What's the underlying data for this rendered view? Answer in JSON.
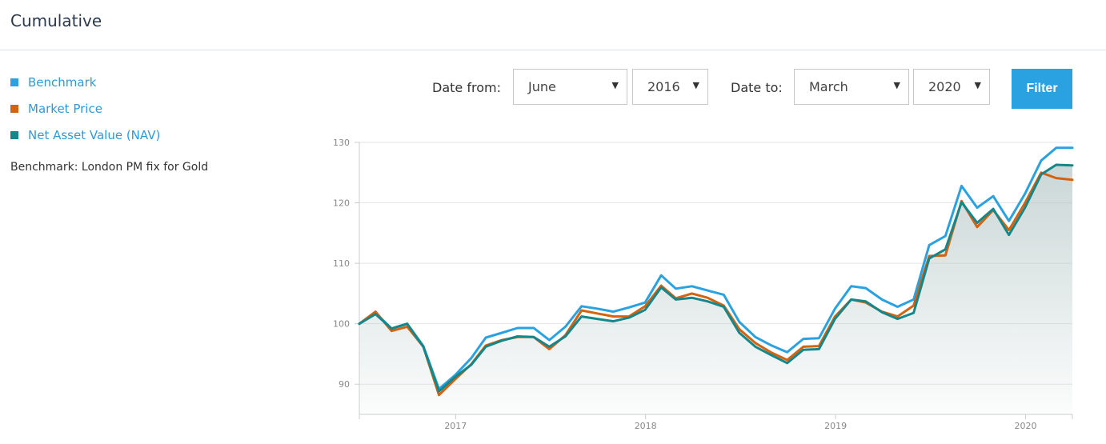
{
  "header": {
    "title": "Cumulative"
  },
  "legend": [
    {
      "label": "Benchmark",
      "color": "#2aa2e2"
    },
    {
      "label": "Market Price",
      "color": "#d4620f"
    },
    {
      "label": "Net Asset Value (NAV)",
      "color": "#14878a"
    }
  ],
  "benchmark_note": "Benchmark: London PM fix for Gold",
  "filters": {
    "date_from_label": "Date from:",
    "date_from_month": "June",
    "date_from_year": "2016",
    "date_to_label": "Date to:",
    "date_to_month": "March",
    "date_to_year": "2020",
    "filter_button": "Filter",
    "caret_icon": "triangle-down"
  },
  "chart_data": {
    "type": "line",
    "title": "",
    "xlabel": "",
    "ylabel": "",
    "ylim": [
      85,
      130
    ],
    "yticks": [
      90,
      100,
      110,
      120,
      130
    ],
    "xlim": [
      "2016-06-30",
      "2020-03-31"
    ],
    "xticks": [
      {
        "date": "2017-01-01",
        "label": "2017"
      },
      {
        "date": "2018-01-01",
        "label": "2018"
      },
      {
        "date": "2019-01-01",
        "label": "2019"
      },
      {
        "date": "2020-01-01",
        "label": "2020"
      }
    ],
    "grid": true,
    "x": [
      "2016-06-30",
      "2016-07-31",
      "2016-08-31",
      "2016-09-30",
      "2016-10-31",
      "2016-11-30",
      "2016-12-31",
      "2017-01-31",
      "2017-02-28",
      "2017-03-31",
      "2017-04-30",
      "2017-05-31",
      "2017-06-30",
      "2017-07-31",
      "2017-08-31",
      "2017-09-30",
      "2017-10-31",
      "2017-11-30",
      "2017-12-31",
      "2018-01-31",
      "2018-02-28",
      "2018-03-31",
      "2018-04-30",
      "2018-05-31",
      "2018-06-30",
      "2018-07-31",
      "2018-08-31",
      "2018-09-30",
      "2018-10-31",
      "2018-11-30",
      "2018-12-31",
      "2019-01-31",
      "2019-02-28",
      "2019-03-31",
      "2019-04-30",
      "2019-05-31",
      "2019-06-30",
      "2019-07-31",
      "2019-08-31",
      "2019-09-30",
      "2019-10-31",
      "2019-11-30",
      "2019-12-31",
      "2020-01-31",
      "2020-02-29",
      "2020-03-31"
    ],
    "series": [
      {
        "name": "Benchmark",
        "color": "#2aa2e2",
        "values": [
          100,
          101.8,
          99.2,
          100,
          96.3,
          89.2,
          91.5,
          94.3,
          97.7,
          98.5,
          99.3,
          99.3,
          97.3,
          99.5,
          102.9,
          102.5,
          102,
          102.7,
          103.5,
          108,
          105.8,
          106.2,
          105.5,
          104.8,
          100.3,
          97.8,
          96.4,
          95.3,
          97.5,
          97.6,
          102.5,
          106.2,
          105.9,
          104,
          102.8,
          104,
          113,
          114.5,
          122.8,
          119.2,
          121.1,
          117,
          121.5,
          127,
          129.1,
          129.1
        ]
      },
      {
        "name": "Market Price",
        "color": "#d4620f",
        "values": [
          100,
          102,
          98.8,
          99.5,
          96.2,
          88.2,
          90.8,
          93.3,
          96.4,
          97.3,
          97.8,
          97.8,
          95.8,
          98.1,
          102.2,
          101.7,
          101.2,
          101.2,
          102.9,
          106.3,
          104.2,
          105,
          104.3,
          103,
          99.1,
          96.8,
          95.2,
          94,
          96.2,
          96.3,
          101.2,
          104,
          103.5,
          102,
          101.2,
          103,
          111.2,
          111.3,
          120.3,
          116,
          118.8,
          115.5,
          120,
          125,
          124.1,
          123.8
        ]
      },
      {
        "name": "Net Asset Value (NAV)",
        "color": "#14878a",
        "values": [
          100,
          101.6,
          99.2,
          100,
          96.2,
          88.8,
          91.2,
          93.2,
          96.2,
          97.2,
          97.9,
          97.8,
          96.2,
          97.9,
          101.2,
          100.8,
          100.4,
          101,
          102.3,
          106,
          104,
          104.3,
          103.7,
          102.8,
          98.5,
          96.2,
          94.8,
          93.5,
          95.7,
          95.8,
          100.8,
          104,
          103.7,
          101.9,
          100.8,
          101.8,
          110.8,
          112.3,
          120.1,
          116.7,
          119,
          114.7,
          119.2,
          124.7,
          126.3,
          126.2
        ]
      }
    ]
  }
}
